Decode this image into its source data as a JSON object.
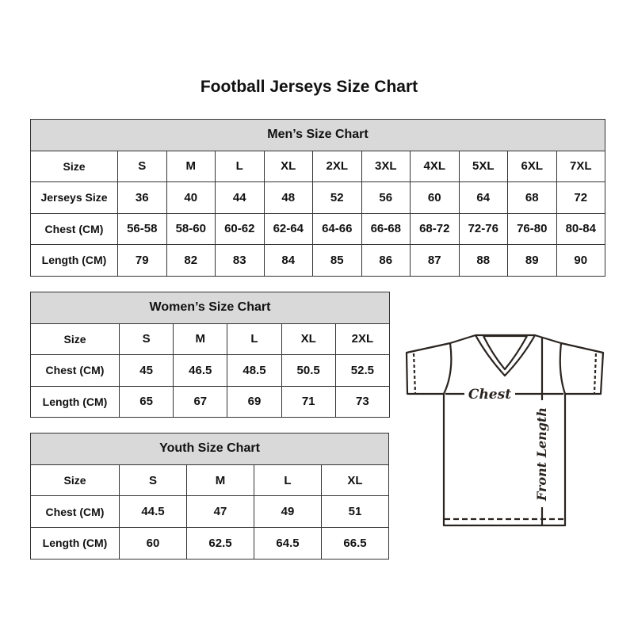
{
  "title": "Football Jerseys Size Chart",
  "men": {
    "heading": "Men’s Size Chart",
    "rows": [
      {
        "label": "Size",
        "values": [
          "S",
          "M",
          "L",
          "XL",
          "2XL",
          "3XL",
          "4XL",
          "5XL",
          "6XL",
          "7XL"
        ]
      },
      {
        "label": "Jerseys Size",
        "values": [
          "36",
          "40",
          "44",
          "48",
          "52",
          "56",
          "60",
          "64",
          "68",
          "72"
        ]
      },
      {
        "label": "Chest (CM)",
        "values": [
          "56-58",
          "58-60",
          "60-62",
          "62-64",
          "64-66",
          "66-68",
          "68-72",
          "72-76",
          "76-80",
          "80-84"
        ]
      },
      {
        "label": "Length (CM)",
        "values": [
          "79",
          "82",
          "83",
          "84",
          "85",
          "86",
          "87",
          "88",
          "89",
          "90"
        ]
      }
    ]
  },
  "women": {
    "heading": "Women’s Size Chart",
    "rows": [
      {
        "label": "Size",
        "values": [
          "S",
          "M",
          "L",
          "XL",
          "2XL"
        ]
      },
      {
        "label": "Chest (CM)",
        "values": [
          "45",
          "46.5",
          "48.5",
          "50.5",
          "52.5"
        ]
      },
      {
        "label": "Length (CM)",
        "values": [
          "65",
          "67",
          "69",
          "71",
          "73"
        ]
      }
    ]
  },
  "youth": {
    "heading": "Youth Size Chart",
    "rows": [
      {
        "label": "Size",
        "values": [
          "S",
          "M",
          "L",
          "XL"
        ]
      },
      {
        "label": "Chest (CM)",
        "values": [
          "44.5",
          "47",
          "49",
          "51"
        ]
      },
      {
        "label": "Length (CM)",
        "values": [
          "60",
          "62.5",
          "64.5",
          "66.5"
        ]
      }
    ]
  },
  "diagram": {
    "chest_label": "Chest",
    "length_label": "Front Length"
  },
  "colors": {
    "header_fill": "#d9d9d9",
    "border": "#333333"
  }
}
